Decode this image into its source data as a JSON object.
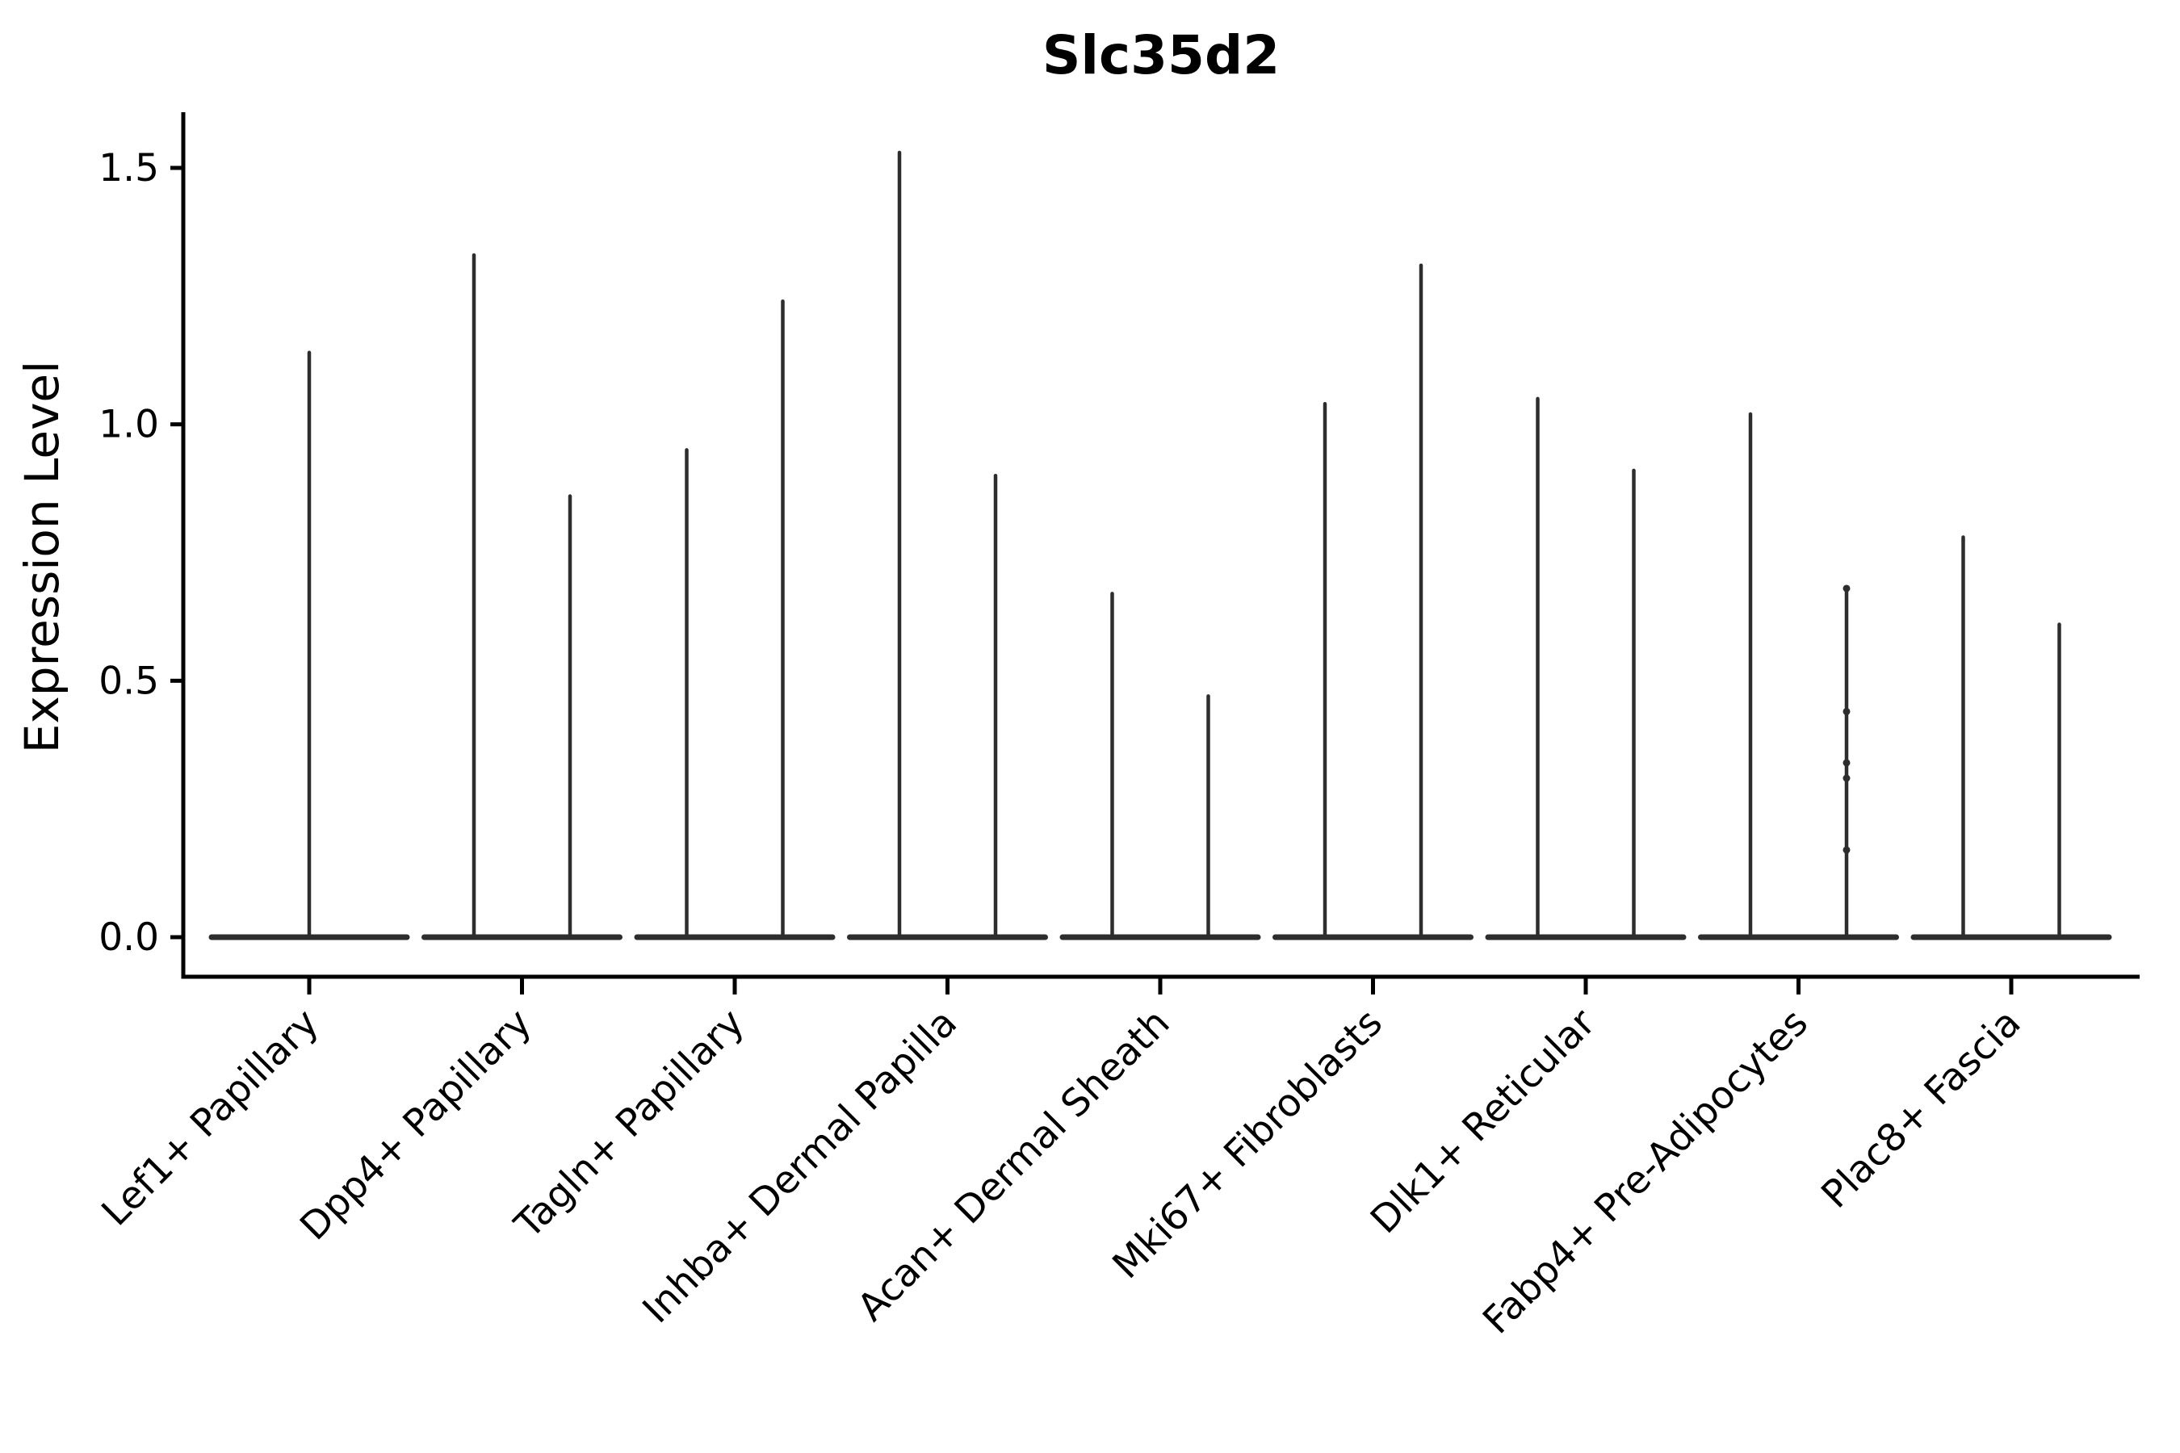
{
  "chart_data": {
    "type": "violin",
    "title": "Slc35d2",
    "ylabel": "Expression Level",
    "xlabel": "",
    "ytick_labels": [
      "0.0",
      "0.5",
      "1.0",
      "1.5"
    ],
    "ytick_values": [
      0.0,
      0.5,
      1.0,
      1.5
    ],
    "ylim": [
      -0.08,
      1.61
    ],
    "grid": false,
    "legend": "none",
    "categories": [
      "Lef1+ Papillary",
      "Dpp4+ Papillary",
      "Tagln+ Papillary",
      "Inhba+ Dermal Papilla",
      "Acan+ Dermal Sheath",
      "Mki67+ Fibroblasts",
      "Dlk1+ Reticular",
      "Fabp4+ Pre-Adipocytes",
      "Plac8+ Fascia"
    ],
    "violins": [
      {
        "category": "Lef1+ Papillary",
        "spike_max_values": [
          1.14
        ]
      },
      {
        "category": "Dpp4+ Papillary",
        "spike_max_values": [
          1.33,
          0.86
        ]
      },
      {
        "category": "Tagln+ Papillary",
        "spike_max_values": [
          0.95,
          1.24
        ]
      },
      {
        "category": "Inhba+ Dermal Papilla",
        "spike_max_values": [
          1.53,
          0.9
        ]
      },
      {
        "category": "Acan+ Dermal Sheath",
        "spike_max_values": [
          0.67,
          0.47
        ]
      },
      {
        "category": "Mki67+ Fibroblasts",
        "spike_max_values": [
          1.04,
          1.31
        ]
      },
      {
        "category": "Dlk1+ Reticular",
        "spike_max_values": [
          1.05,
          0.91
        ]
      },
      {
        "category": "Fabp4+ Pre-Adipocytes",
        "spike_max_values": [
          1.02,
          0.68
        ]
      },
      {
        "category": "Plac8+ Fascia",
        "spike_max_values": [
          0.78,
          0.61
        ]
      }
    ],
    "jitter_points": [
      {
        "category_index": 7,
        "spike_index": 1,
        "values": [
          0.68,
          0.44,
          0.34,
          0.31,
          0.17
        ]
      }
    ],
    "styles": {
      "violin_color": "#2d2d2d",
      "axis_color": "#000000",
      "text_color": "#000000",
      "background": "#ffffff"
    }
  }
}
